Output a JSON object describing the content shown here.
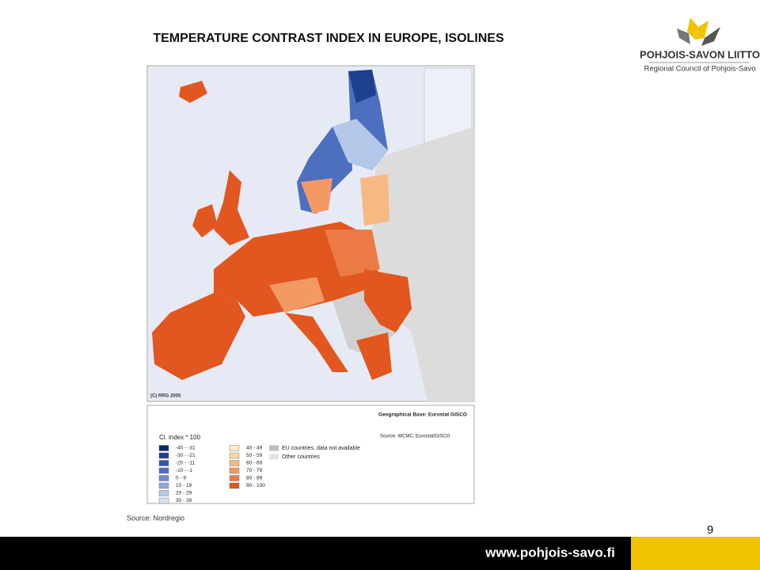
{
  "title": "TEMPERATURE CONTRAST INDEX IN EUROPE, ISOLINES",
  "logo": {
    "name": "POHJOIS-SAVON LIITTO",
    "subtitle": "Regional Council of Pohjois-Savo"
  },
  "map": {
    "copyright": "(C) RRG 2005",
    "geo_base": "Geographical Base: Eurostat GISCO",
    "source": "Source: WCMC, Eurostat/GISCO",
    "legend": {
      "title": "Cl. index * 100",
      "items": [
        {
          "label": "-40 - -31",
          "color": "#0b2a6e"
        },
        {
          "label": "-30 - -21",
          "color": "#1f3f8f"
        },
        {
          "label": "-20 - -11",
          "color": "#3355a8"
        },
        {
          "label": "-10 -  -1",
          "color": "#4d6fbf"
        },
        {
          "label": "0 -   9",
          "color": "#6d8ccf"
        },
        {
          "label": "10 -  19",
          "color": "#8fa9dc"
        },
        {
          "label": "20 -  29",
          "color": "#b3c7e8"
        },
        {
          "label": "30 -  39",
          "color": "#d3e0f2"
        },
        {
          "label": "40 -  49",
          "color": "#fde9c8"
        },
        {
          "label": "50 -  59",
          "color": "#fbd3a4"
        },
        {
          "label": "60 -  69",
          "color": "#f8b884"
        },
        {
          "label": "70 -  79",
          "color": "#f39a64"
        },
        {
          "label": "80 -  89",
          "color": "#ec7a44"
        },
        {
          "label": "90 - 100",
          "color": "#e2561f"
        }
      ],
      "other": [
        {
          "label": "EU countries: data not available",
          "color": "#bdbdbd"
        },
        {
          "label": "Other countries",
          "color": "#e3e3e3"
        }
      ]
    }
  },
  "source": "Source: Nordregio",
  "page_number": "9",
  "website": "www.pohjois-savo.fi"
}
